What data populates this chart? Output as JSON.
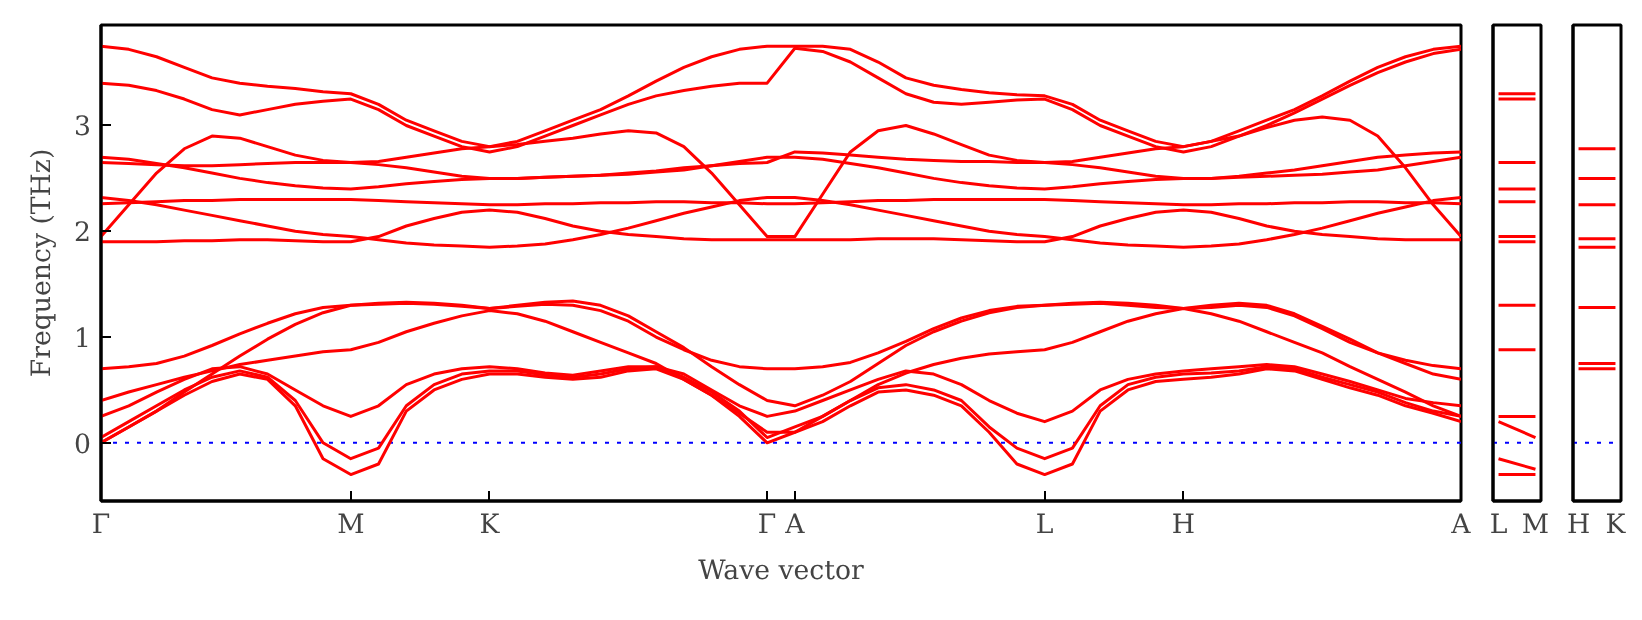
{
  "chart_data": [
    {
      "type": "line",
      "xlabel": "Wave vector",
      "ylabel": "Frequency (THz)",
      "ylim": [
        -0.55,
        3.95
      ],
      "yticks": [
        0,
        1,
        2,
        3
      ],
      "grid": false,
      "line_style": "solid",
      "ref_lines": [
        {
          "axis": "y",
          "value": 0,
          "label": null,
          "color": "#0000ff",
          "line_style": "dotted"
        }
      ],
      "categories": [
        "Γ",
        null,
        null,
        null,
        null,
        null,
        null,
        null,
        null,
        "M",
        null,
        null,
        null,
        null,
        "K",
        null,
        null,
        null,
        null,
        null,
        null,
        null,
        null,
        null,
        "Γ",
        "A",
        null,
        null,
        null,
        null,
        null,
        null,
        null,
        null,
        "L",
        null,
        null,
        null,
        null,
        "H",
        null,
        null,
        null,
        null,
        null,
        null,
        null,
        null,
        null,
        "A"
      ],
      "series": [
        {
          "color": "#ff0000",
          "values": [
            0,
            0.15,
            0.3,
            0.45,
            0.58,
            0.65,
            0.6,
            0.35,
            -0.15,
            -0.3,
            -0.2,
            0.3,
            0.5,
            0.6,
            0.65,
            0.65,
            0.62,
            0.6,
            0.62,
            0.68,
            0.7,
            0.6,
            0.45,
            0.25,
            0.0,
            0.1,
            0.2,
            0.35,
            0.48,
            0.5,
            0.45,
            0.35,
            0.1,
            -0.2,
            -0.3,
            -0.2,
            0.3,
            0.5,
            0.58,
            0.6,
            0.62,
            0.65,
            0.7,
            0.68,
            0.6,
            0.52,
            0.45,
            0.35,
            0.28,
            0.2
          ]
        },
        {
          "color": "#ff0000",
          "values": [
            0.05,
            0.2,
            0.35,
            0.5,
            0.62,
            0.68,
            0.62,
            0.4,
            0.0,
            -0.15,
            -0.05,
            0.35,
            0.55,
            0.65,
            0.68,
            0.68,
            0.64,
            0.62,
            0.65,
            0.7,
            0.72,
            0.62,
            0.48,
            0.3,
            0.05,
            0.15,
            0.25,
            0.4,
            0.52,
            0.55,
            0.5,
            0.4,
            0.15,
            -0.05,
            -0.15,
            -0.05,
            0.35,
            0.55,
            0.62,
            0.65,
            0.66,
            0.68,
            0.72,
            0.7,
            0.62,
            0.55,
            0.48,
            0.38,
            0.3,
            0.25
          ]
        },
        {
          "color": "#ff0000",
          "values": [
            0.25,
            0.35,
            0.48,
            0.6,
            0.7,
            0.72,
            0.65,
            0.5,
            0.35,
            0.25,
            0.35,
            0.55,
            0.65,
            0.7,
            0.72,
            0.7,
            0.66,
            0.64,
            0.68,
            0.72,
            0.72,
            0.65,
            0.5,
            0.35,
            0.25,
            0.3,
            0.4,
            0.5,
            0.6,
            0.68,
            0.65,
            0.55,
            0.4,
            0.28,
            0.2,
            0.3,
            0.5,
            0.6,
            0.65,
            0.68,
            0.7,
            0.72,
            0.74,
            0.72,
            0.65,
            0.58,
            0.5,
            0.42,
            0.38,
            0.35
          ]
        },
        {
          "color": "#ff0000",
          "values": [
            0.4,
            0.48,
            0.55,
            0.62,
            0.68,
            0.74,
            0.78,
            0.82,
            0.86,
            0.88,
            0.95,
            1.05,
            1.13,
            1.2,
            1.25,
            1.22,
            1.15,
            1.05,
            0.95,
            0.85,
            0.75,
            0.6,
            0.45,
            0.28,
            0.1,
            0.1,
            0.25,
            0.4,
            0.55,
            0.66,
            0.74,
            0.8,
            0.84,
            0.86,
            0.88,
            0.95,
            1.05,
            1.15,
            1.22,
            1.27,
            1.22,
            1.15,
            1.05,
            0.95,
            0.85,
            0.72,
            0.6,
            0.48,
            0.35,
            0.25
          ]
        },
        {
          "color": "#ff0000",
          "values": [
            0.0,
            0.15,
            0.3,
            0.48,
            0.65,
            0.82,
            0.98,
            1.12,
            1.23,
            1.3,
            1.32,
            1.33,
            1.32,
            1.3,
            1.27,
            1.3,
            1.33,
            1.34,
            1.3,
            1.2,
            1.05,
            0.9,
            0.72,
            0.55,
            0.4,
            0.35,
            0.45,
            0.58,
            0.75,
            0.92,
            1.05,
            1.15,
            1.23,
            1.28,
            1.3,
            1.32,
            1.33,
            1.32,
            1.3,
            1.27,
            1.3,
            1.32,
            1.3,
            1.22,
            1.1,
            0.98,
            0.85,
            0.75,
            0.65,
            0.6
          ]
        },
        {
          "color": "#ff0000",
          "values": [
            0.7,
            0.72,
            0.75,
            0.82,
            0.92,
            1.03,
            1.13,
            1.22,
            1.28,
            1.3,
            1.31,
            1.32,
            1.31,
            1.29,
            1.27,
            1.29,
            1.31,
            1.3,
            1.25,
            1.15,
            1.0,
            0.88,
            0.78,
            0.72,
            0.7,
            0.7,
            0.72,
            0.76,
            0.85,
            0.96,
            1.08,
            1.18,
            1.25,
            1.29,
            1.3,
            1.31,
            1.32,
            1.3,
            1.28,
            1.27,
            1.28,
            1.3,
            1.28,
            1.2,
            1.08,
            0.95,
            0.85,
            0.78,
            0.73,
            0.7
          ]
        },
        {
          "color": "#ff0000",
          "values": [
            1.9,
            1.9,
            1.9,
            1.91,
            1.91,
            1.92,
            1.92,
            1.91,
            1.9,
            1.9,
            1.95,
            2.05,
            2.12,
            2.18,
            2.2,
            2.18,
            2.12,
            2.05,
            2.0,
            1.97,
            1.95,
            1.93,
            1.92,
            1.92,
            1.92,
            1.92,
            1.92,
            1.92,
            1.93,
            1.93,
            1.93,
            1.92,
            1.91,
            1.9,
            1.9,
            1.95,
            2.05,
            2.12,
            2.18,
            2.2,
            2.18,
            2.12,
            2.05,
            2.0,
            1.97,
            1.95,
            1.93,
            1.92,
            1.92,
            1.92
          ]
        },
        {
          "color": "#ff0000",
          "values": [
            2.32,
            2.29,
            2.25,
            2.2,
            2.15,
            2.1,
            2.05,
            2.0,
            1.97,
            1.95,
            1.92,
            1.89,
            1.87,
            1.86,
            1.85,
            1.86,
            1.88,
            1.92,
            1.97,
            2.03,
            2.1,
            2.17,
            2.23,
            2.29,
            2.32,
            2.32,
            2.29,
            2.25,
            2.2,
            2.15,
            2.1,
            2.05,
            2.0,
            1.97,
            1.95,
            1.92,
            1.89,
            1.87,
            1.86,
            1.85,
            1.86,
            1.88,
            1.92,
            1.97,
            2.03,
            2.1,
            2.17,
            2.23,
            2.29,
            2.32
          ]
        },
        {
          "color": "#ff0000",
          "values": [
            2.26,
            2.27,
            2.28,
            2.29,
            2.29,
            2.3,
            2.3,
            2.3,
            2.3,
            2.3,
            2.29,
            2.28,
            2.27,
            2.26,
            2.25,
            2.25,
            2.26,
            2.26,
            2.27,
            2.27,
            2.28,
            2.28,
            2.27,
            2.27,
            2.26,
            2.26,
            2.27,
            2.28,
            2.29,
            2.29,
            2.3,
            2.3,
            2.3,
            2.3,
            2.3,
            2.29,
            2.28,
            2.27,
            2.26,
            2.25,
            2.25,
            2.26,
            2.26,
            2.27,
            2.27,
            2.28,
            2.28,
            2.27,
            2.27,
            2.26
          ]
        },
        {
          "color": "#ff0000",
          "values": [
            2.7,
            2.68,
            2.64,
            2.6,
            2.55,
            2.5,
            2.46,
            2.43,
            2.41,
            2.4,
            2.42,
            2.45,
            2.47,
            2.49,
            2.5,
            2.5,
            2.51,
            2.52,
            2.53,
            2.54,
            2.56,
            2.58,
            2.62,
            2.66,
            2.7,
            2.7,
            2.68,
            2.64,
            2.6,
            2.55,
            2.5,
            2.46,
            2.43,
            2.41,
            2.4,
            2.42,
            2.45,
            2.47,
            2.49,
            2.5,
            2.5,
            2.51,
            2.52,
            2.53,
            2.54,
            2.56,
            2.58,
            2.62,
            2.66,
            2.7
          ]
        },
        {
          "color": "#ff0000",
          "values": [
            2.65,
            2.64,
            2.63,
            2.62,
            2.62,
            2.63,
            2.64,
            2.65,
            2.65,
            2.65,
            2.63,
            2.6,
            2.56,
            2.52,
            2.5,
            2.5,
            2.51,
            2.52,
            2.53,
            2.55,
            2.57,
            2.6,
            2.62,
            2.64,
            2.65,
            2.75,
            2.74,
            2.72,
            2.7,
            2.68,
            2.67,
            2.66,
            2.66,
            2.65,
            2.65,
            2.63,
            2.6,
            2.56,
            2.52,
            2.5,
            2.5,
            2.52,
            2.55,
            2.58,
            2.62,
            2.66,
            2.7,
            2.72,
            2.74,
            2.75
          ]
        },
        {
          "color": "#ff0000",
          "values": [
            1.95,
            2.25,
            2.55,
            2.78,
            2.9,
            2.88,
            2.8,
            2.72,
            2.67,
            2.65,
            2.66,
            2.7,
            2.74,
            2.78,
            2.8,
            2.82,
            2.85,
            2.88,
            2.92,
            2.95,
            2.93,
            2.8,
            2.55,
            2.25,
            1.95,
            1.95,
            2.35,
            2.75,
            2.95,
            3.0,
            2.92,
            2.82,
            2.72,
            2.67,
            2.65,
            2.66,
            2.7,
            2.74,
            2.78,
            2.8,
            2.85,
            2.9,
            2.98,
            3.05,
            3.08,
            3.05,
            2.9,
            2.6,
            2.25,
            1.95
          ]
        },
        {
          "color": "#ff0000",
          "values": [
            3.75,
            3.72,
            3.65,
            3.55,
            3.45,
            3.4,
            3.37,
            3.35,
            3.32,
            3.3,
            3.2,
            3.05,
            2.95,
            2.85,
            2.8,
            2.85,
            2.95,
            3.05,
            3.15,
            3.28,
            3.42,
            3.55,
            3.65,
            3.72,
            3.75,
            3.75,
            3.75,
            3.72,
            3.6,
            3.45,
            3.38,
            3.34,
            3.31,
            3.29,
            3.28,
            3.2,
            3.05,
            2.95,
            2.85,
            2.8,
            2.85,
            2.95,
            3.05,
            3.15,
            3.28,
            3.42,
            3.55,
            3.65,
            3.72,
            3.75
          ]
        },
        {
          "color": "#ff0000",
          "values": [
            3.4,
            3.38,
            3.33,
            3.25,
            3.15,
            3.1,
            3.15,
            3.2,
            3.23,
            3.25,
            3.15,
            3.0,
            2.9,
            2.8,
            2.75,
            2.8,
            2.9,
            3.0,
            3.1,
            3.2,
            3.28,
            3.33,
            3.37,
            3.4,
            3.4,
            3.73,
            3.7,
            3.6,
            3.45,
            3.3,
            3.22,
            3.2,
            3.22,
            3.24,
            3.25,
            3.15,
            3.0,
            2.9,
            2.8,
            2.75,
            2.8,
            2.9,
            3.0,
            3.12,
            3.25,
            3.38,
            3.5,
            3.6,
            3.68,
            3.72
          ]
        }
      ]
    },
    {
      "type": "line",
      "ylim": [
        -0.55,
        3.95
      ],
      "tick_labels": "x",
      "grid": false,
      "categories": [
        "L",
        "M"
      ],
      "ref_lines": [
        {
          "axis": "y",
          "value": 0,
          "label": null,
          "color": "#0000ff",
          "line_style": "dotted"
        }
      ],
      "series": [
        {
          "color": "#ff0000",
          "values": [
            3.3,
            3.3
          ]
        },
        {
          "color": "#ff0000",
          "values": [
            3.25,
            3.25
          ]
        },
        {
          "color": "#ff0000",
          "values": [
            2.65,
            2.65
          ]
        },
        {
          "color": "#ff0000",
          "values": [
            2.4,
            2.4
          ]
        },
        {
          "color": "#ff0000",
          "values": [
            2.28,
            2.28
          ]
        },
        {
          "color": "#ff0000",
          "values": [
            1.95,
            1.95
          ]
        },
        {
          "color": "#ff0000",
          "values": [
            1.9,
            1.9
          ]
        },
        {
          "color": "#ff0000",
          "values": [
            1.3,
            1.3
          ]
        },
        {
          "color": "#ff0000",
          "values": [
            0.88,
            0.88
          ]
        },
        {
          "color": "#ff0000",
          "values": [
            0.25,
            0.25
          ]
        },
        {
          "color": "#ff0000",
          "values": [
            0.2,
            0.05
          ]
        },
        {
          "color": "#ff0000",
          "values": [
            -0.15,
            -0.25
          ]
        },
        {
          "color": "#ff0000",
          "values": [
            -0.3,
            -0.3
          ]
        }
      ]
    },
    {
      "type": "line",
      "ylim": [
        -0.55,
        3.95
      ],
      "tick_labels": "x",
      "grid": false,
      "categories": [
        "H",
        "K"
      ],
      "ref_lines": [
        {
          "axis": "y",
          "value": 0,
          "label": null,
          "color": "#0000ff",
          "line_style": "dotted"
        }
      ],
      "series": [
        {
          "color": "#ff0000",
          "values": [
            2.78,
            2.78
          ]
        },
        {
          "color": "#ff0000",
          "values": [
            2.5,
            2.5
          ]
        },
        {
          "color": "#ff0000",
          "values": [
            2.25,
            2.25
          ]
        },
        {
          "color": "#ff0000",
          "values": [
            1.93,
            1.93
          ]
        },
        {
          "color": "#ff0000",
          "values": [
            1.85,
            1.85
          ]
        },
        {
          "color": "#ff0000",
          "values": [
            1.28,
            1.28
          ]
        },
        {
          "color": "#ff0000",
          "values": [
            0.75,
            0.75
          ]
        },
        {
          "color": "#ff0000",
          "values": [
            0.7,
            0.7
          ]
        }
      ]
    }
  ]
}
